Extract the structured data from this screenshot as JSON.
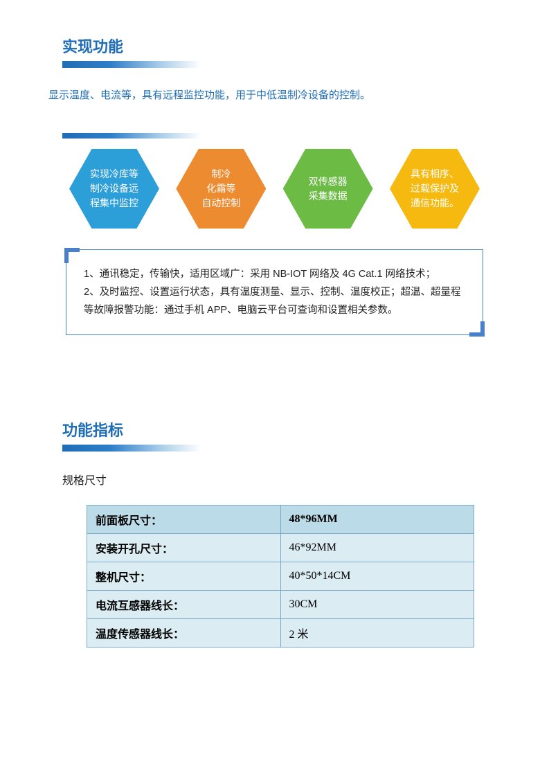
{
  "section1": {
    "heading": "实现功能",
    "intro": "显示温度、电流等，具有远程监控功能，用于中低温制冷设备的控制。",
    "hexagons": [
      {
        "text": "实现冷库等\n制冷设备远\n程集中监控",
        "color": "#2d9fd8"
      },
      {
        "text": "制冷\n化霜等\n自动控制",
        "color": "#ec8b2f"
      },
      {
        "text": "双传感器\n采集数据",
        "color": "#6bbb45"
      },
      {
        "text": "具有相序、\n过载保护及\n通信功能。",
        "color": "#f5b90f"
      }
    ],
    "info_lines": [
      "1、通讯稳定，传输快，适用区域广：采用 NB-IOT 网络及 4G Cat.1 网络技术；",
      "2、及时监控、设置运行状态，具有温度测量、显示、控制、温度校正；超温、超量程等故障报警功能：通过手机 APP、电脑云平台可查询和设置相关参数。"
    ],
    "box_border_color": "#4a80c8"
  },
  "section2": {
    "heading": "功能指标",
    "subheading": "规格尺寸",
    "table": {
      "header_bg": "#bcdbe8",
      "alt_bg": "#dbecf2",
      "border_color": "#7aa8c8",
      "rows": [
        {
          "label": "前面板尺寸：",
          "value": "48*96MM",
          "value_bold": true,
          "shade": "dark"
        },
        {
          "label": "安装开孔尺寸：",
          "value": "46*92MM",
          "value_bold": false,
          "shade": "light"
        },
        {
          "label": "整机尺寸：",
          "value": "40*50*14CM",
          "value_bold": false,
          "shade": "light"
        },
        {
          "label": "电流互感器线长：",
          "value": " 30CM",
          "value_bold": false,
          "shade": "light"
        },
        {
          "label": "温度传感器线长：",
          "value": " 2 米",
          "value_bold": false,
          "shade": "light"
        }
      ]
    }
  },
  "colors": {
    "heading_blue": "#1f6db5",
    "gradient_start": "#1f6db5",
    "gradient_end": "#ffffff"
  }
}
